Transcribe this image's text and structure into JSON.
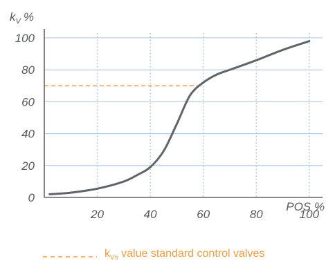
{
  "chart_data": {
    "type": "line",
    "xlabel": "POS %",
    "ylabel_main": "k",
    "ylabel_sub": "V",
    "ylabel_unit": "%",
    "xlim": [
      0,
      105
    ],
    "ylim": [
      0,
      103
    ],
    "x_ticks": [
      20,
      40,
      60,
      80,
      100
    ],
    "x_tick_labels": [
      "20",
      "40",
      "60",
      "80",
      "100"
    ],
    "y_ticks": [
      0,
      20,
      40,
      60,
      80,
      100
    ],
    "y_tick_labels": [
      "0",
      "20",
      "40",
      "60",
      "80",
      "100"
    ],
    "grid": {
      "horizontal": true,
      "vertical": "dotted"
    },
    "series": [
      {
        "color": "#5f6469",
        "x": [
          2,
          10,
          20,
          30,
          35,
          40,
          45,
          50,
          55,
          60,
          65,
          70,
          80,
          90,
          100
        ],
        "y": [
          2,
          3,
          5.5,
          10,
          14,
          19,
          29,
          46,
          64,
          72,
          77,
          80,
          86,
          92.5,
          98
        ]
      }
    ],
    "reference_line": {
      "y": 70,
      "x_range": [
        0,
        60
      ],
      "style": "dashed",
      "color": "#f29b3f",
      "legend_main": "k",
      "legend_sub": "Vs",
      "legend_text": " value standard control valves"
    },
    "colors": {
      "grid": "#a8c4e0",
      "axis": "#5f6469",
      "text": "#555a60"
    }
  }
}
